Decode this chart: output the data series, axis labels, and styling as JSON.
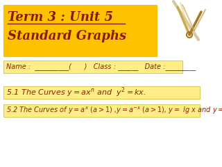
{
  "title_line1": "Term 3 : Unit 5",
  "title_line2": "Standard Graphs",
  "title_bg": "#FFC200",
  "title_color": "#8B1A00",
  "name_line": "Name :  __________(      )   Class : ______   Date :_________",
  "name_bg": "#FFEE88",
  "section1_bg": "#FFEE88",
  "section2_bg": "#FFEE88",
  "bg_color": "#FFFFFF",
  "text_color": "#8B2500",
  "font_size": 8,
  "title_font_size": 13
}
